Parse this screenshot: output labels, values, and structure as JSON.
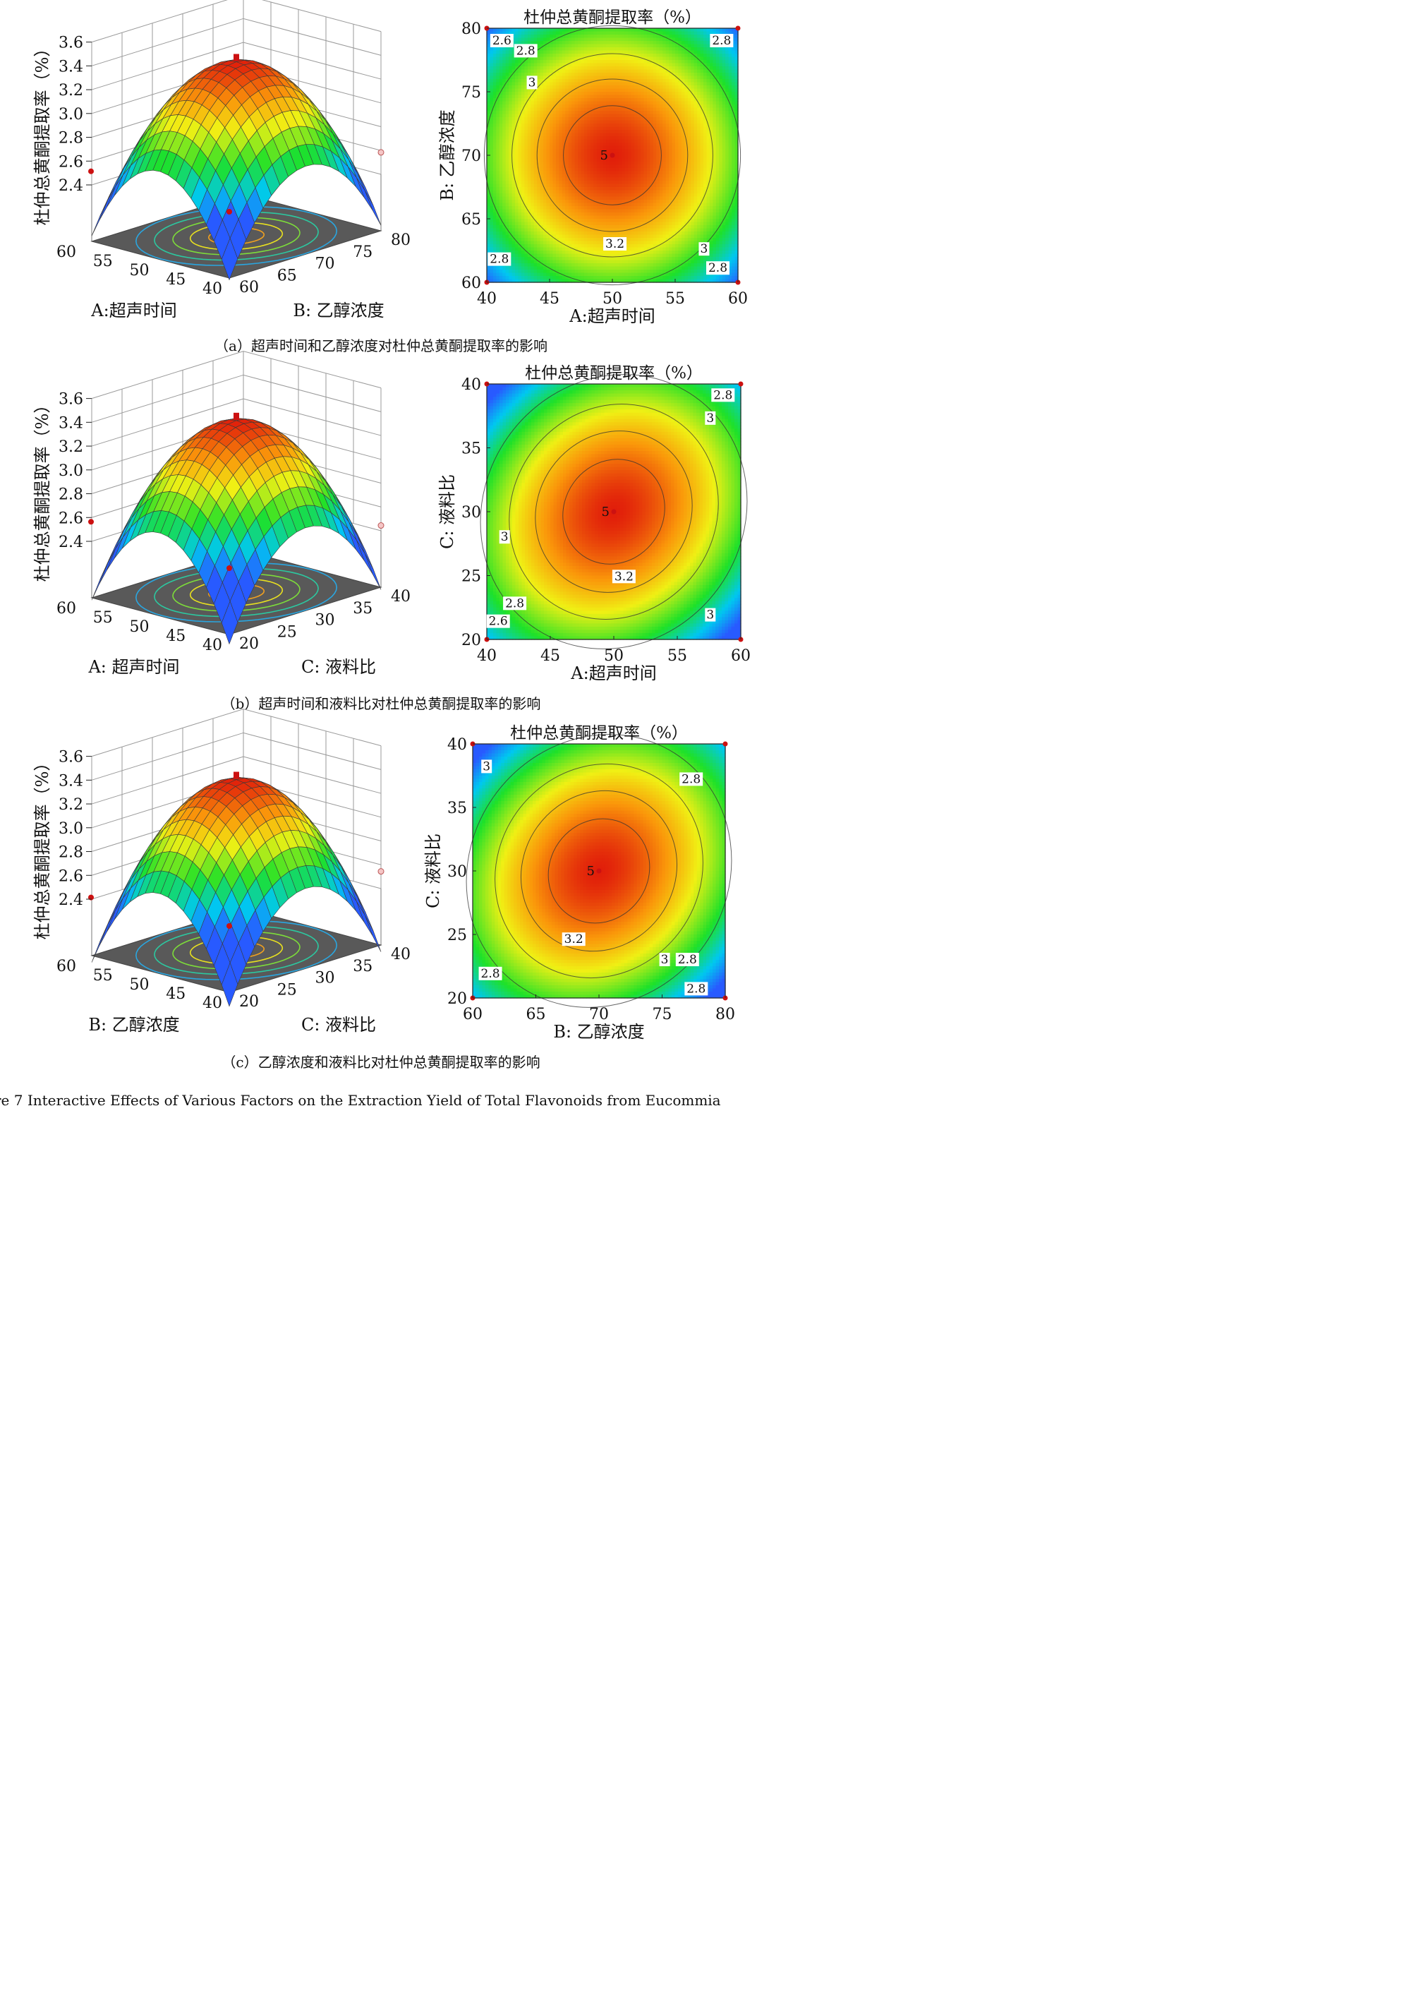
{
  "figure_caption": "re 7 Interactive Effects of Various Factors on the Extraction Yield of Total Flavonoids from Eucommia",
  "colors": {
    "low": "#2b6fff",
    "mid": "#22dd33",
    "high": "#e62e0e",
    "floor": "#595959",
    "point": "#cc1111"
  },
  "chart_data": [
    {
      "type": "surface3d",
      "id": "a-surface",
      "zlabel": "杜仲总黄酮提取率（%）",
      "xlabel": "A:超声时间",
      "ylabel": "B:  乙醇浓度",
      "xticks": [
        "60",
        "55",
        "50",
        "45",
        "40"
      ],
      "yticks": [
        "60",
        "65",
        "70",
        "75",
        "80"
      ],
      "zticks": [
        "3.6",
        "3.4",
        "3.2",
        "3.0",
        "2.8",
        "2.6",
        "2.4"
      ],
      "zlim": [
        2.4,
        3.6
      ],
      "corner_values": {
        "left": 2.55,
        "right": 2.62,
        "front": 2.35,
        "peak": 3.39
      },
      "design_points": [
        {
          "x": 60,
          "y": 80,
          "z": 2.55,
          "above": true
        },
        {
          "x": 40,
          "y": 60,
          "z": 2.62,
          "above": false
        },
        {
          "x": 40,
          "y": 80,
          "z": 2.35,
          "above": true
        },
        {
          "x": 50,
          "y": 70,
          "z": 3.39,
          "above": true
        }
      ]
    },
    {
      "type": "contour",
      "id": "a-contour",
      "title": "杜仲总黄酮提取率（%）",
      "xlabel": "A:超声时间",
      "ylabel": "B:  乙醇浓度",
      "xlim": [
        40,
        60
      ],
      "ylim": [
        60,
        80
      ],
      "xticks": [
        "40",
        "45",
        "50",
        "55",
        "60"
      ],
      "yticks": [
        "60",
        "65",
        "70",
        "75",
        "80"
      ],
      "center": {
        "x": 50,
        "y": 70,
        "label": "5"
      },
      "contour_levels": [
        2.6,
        2.8,
        3.0,
        3.2
      ],
      "contour_labels": [
        {
          "text": "2.6",
          "x": 41.2,
          "y": 79.0
        },
        {
          "text": "2.8",
          "x": 43.1,
          "y": 78.2
        },
        {
          "text": "2.8",
          "x": 58.7,
          "y": 79.0
        },
        {
          "text": "3",
          "x": 43.6,
          "y": 75.7
        },
        {
          "text": "3.2",
          "x": 50.2,
          "y": 63.0
        },
        {
          "text": "3",
          "x": 57.3,
          "y": 62.6
        },
        {
          "text": "2.8",
          "x": 41.0,
          "y": 61.8
        },
        {
          "text": "2.8",
          "x": 58.4,
          "y": 61.1
        }
      ]
    },
    {
      "type": "surface3d",
      "id": "b-surface",
      "zlabel": "杜仲总黄酮提取率（%）",
      "xlabel": "A: 超声时间",
      "ylabel": "C:  液料比",
      "xticks": [
        "60",
        "55",
        "50",
        "45",
        "40"
      ],
      "yticks": [
        "20",
        "25",
        "30",
        "35",
        "40"
      ],
      "zticks": [
        "3.6",
        "3.4",
        "3.2",
        "3.0",
        "2.8",
        "2.6",
        "2.4"
      ],
      "zlim": [
        2.4,
        3.6
      ],
      "corner_values": {
        "left": 2.6,
        "right": 2.48,
        "front": 2.5,
        "peak": 3.37
      },
      "design_points": [
        {
          "x": 60,
          "y": 40,
          "z": 2.6,
          "above": true
        },
        {
          "x": 40,
          "y": 20,
          "z": 2.48,
          "above": false
        },
        {
          "x": 40,
          "y": 40,
          "z": 2.5,
          "above": false
        },
        {
          "x": 50,
          "y": 30,
          "z": 3.37,
          "above": true
        }
      ]
    },
    {
      "type": "contour",
      "id": "b-contour",
      "title": "杜仲总黄酮提取率（%）",
      "xlabel": "A:超声时间",
      "ylabel": "C:  液料比",
      "xlim": [
        40,
        60
      ],
      "ylim": [
        20,
        40
      ],
      "xticks": [
        "40",
        "45",
        "50",
        "55",
        "60"
      ],
      "yticks": [
        "20",
        "25",
        "30",
        "35",
        "40"
      ],
      "center": {
        "x": 50,
        "y": 30,
        "label": "5"
      },
      "contour_levels": [
        2.6,
        2.8,
        3.0,
        3.2
      ],
      "contour_labels": [
        {
          "text": "2.8",
          "x": 58.6,
          "y": 39.1
        },
        {
          "text": "3",
          "x": 57.6,
          "y": 37.3
        },
        {
          "text": "3",
          "x": 41.4,
          "y": 28.0
        },
        {
          "text": "3.2",
          "x": 50.8,
          "y": 24.9
        },
        {
          "text": "2.8",
          "x": 42.2,
          "y": 22.8
        },
        {
          "text": "2.6",
          "x": 40.9,
          "y": 21.4
        },
        {
          "text": "3",
          "x": 57.6,
          "y": 21.9
        }
      ]
    },
    {
      "type": "surface3d",
      "id": "c-surface",
      "zlabel": "杜仲总黄酮提取率（%）",
      "xlabel": "B: 乙醇浓度",
      "ylabel": "C:  液料比",
      "xticks": [
        "60",
        "55",
        "50",
        "45",
        "40"
      ],
      "yticks": [
        "20",
        "25",
        "30",
        "35",
        "40"
      ],
      "zticks": [
        "3.6",
        "3.4",
        "3.2",
        "3.0",
        "2.8",
        "2.6",
        "2.4"
      ],
      "zlim": [
        2.4,
        3.6
      ],
      "corner_values": {
        "left": 2.45,
        "right": 2.58,
        "front": 2.52,
        "peak": 3.36
      },
      "design_points": [
        {
          "x": 60,
          "y": 40,
          "z": 2.45,
          "above": false
        },
        {
          "x": 40,
          "y": 20,
          "z": 2.58,
          "above": true
        },
        {
          "x": 40,
          "y": 40,
          "z": 2.52,
          "above": true
        },
        {
          "x": 50,
          "y": 30,
          "z": 3.36,
          "above": true
        }
      ]
    },
    {
      "type": "contour",
      "id": "c-contour",
      "title": "杜仲总黄酮提取率（%）",
      "xlabel": "B:  乙醇浓度",
      "ylabel": "C:  液料比",
      "xlim": [
        60,
        80
      ],
      "ylim": [
        20,
        40
      ],
      "xticks": [
        "60",
        "65",
        "70",
        "75",
        "80"
      ],
      "yticks": [
        "20",
        "25",
        "30",
        "35",
        "40"
      ],
      "center": {
        "x": 70,
        "y": 30,
        "label": "5"
      },
      "contour_levels": [
        2.8,
        3.0,
        3.2
      ],
      "contour_labels": [
        {
          "text": "3",
          "x": 61.1,
          "y": 38.2
        },
        {
          "text": "2.8",
          "x": 77.3,
          "y": 37.2
        },
        {
          "text": "3.2",
          "x": 68.0,
          "y": 24.6
        },
        {
          "text": "3",
          "x": 75.2,
          "y": 23.0
        },
        {
          "text": "2.8",
          "x": 77.0,
          "y": 23.0
        },
        {
          "text": "2.8",
          "x": 61.4,
          "y": 21.9
        },
        {
          "text": "2.8",
          "x": 77.7,
          "y": 20.7
        }
      ]
    }
  ],
  "panel_captions": [
    "（a）超声时间和乙醇浓度对杜仲总黄酮提取率的影响",
    "（b）超声时间和液料比对杜仲总黄酮提取率的影响",
    "（c）乙醇浓度和液料比对杜仲总黄酮提取率的影响"
  ]
}
